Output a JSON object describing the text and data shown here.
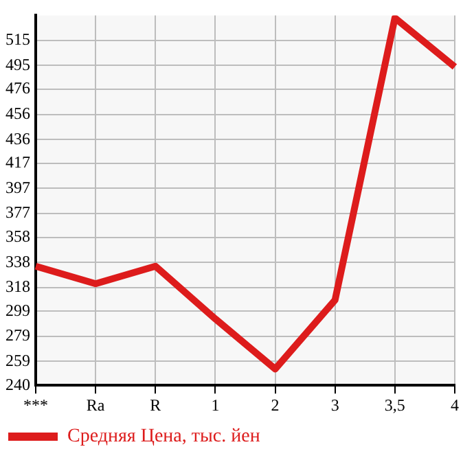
{
  "chart_data": {
    "type": "line",
    "categories": [
      "***",
      "Ra",
      "R",
      "1",
      "2",
      "3",
      "3,5",
      "4"
    ],
    "series": [
      {
        "name": "Средняя Цена, тыс. йен",
        "color": "#dd1c1c",
        "values": [
          335,
          321,
          335,
          293,
          253,
          308,
          533,
          494
        ]
      }
    ],
    "ylim": [
      240,
      535
    ],
    "yticks": [
      240,
      259,
      279,
      299,
      318,
      338,
      358,
      377,
      397,
      417,
      436,
      456,
      476,
      495,
      515
    ],
    "grid": true,
    "legend": "bottom left",
    "marker": "none",
    "line_style": "solid"
  }
}
